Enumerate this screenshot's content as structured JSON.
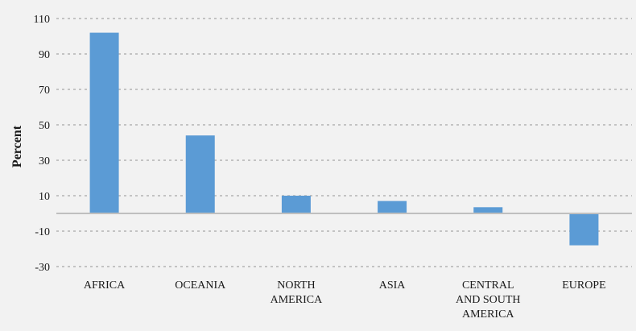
{
  "chart_data": {
    "type": "bar",
    "title": "",
    "xlabel": "",
    "ylabel": "Percent",
    "ylim": [
      -30,
      110
    ],
    "yticks": [
      110,
      90,
      70,
      50,
      30,
      10,
      -10,
      -30
    ],
    "grid": "horizontal-dashed",
    "categories": [
      [
        "AFRICA"
      ],
      [
        "OCEANIA"
      ],
      [
        "NORTH",
        "AMERICA"
      ],
      [
        "ASIA"
      ],
      [
        "CENTRAL",
        "AND SOUTH",
        "AMERICA"
      ],
      [
        "EUROPE"
      ]
    ],
    "values": [
      102,
      44,
      10,
      7,
      3.5,
      -18
    ],
    "colors": {
      "bar": "#5b9bd5",
      "grid": "#b3b3b3",
      "baseline": "#bfbfbf",
      "background": "#f2f2f2"
    }
  }
}
